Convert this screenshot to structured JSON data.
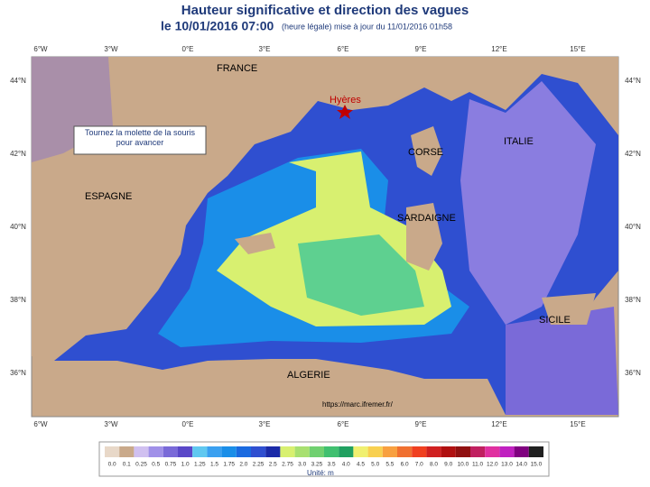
{
  "header": {
    "title": "Hauteur significative et direction des vagues",
    "date": "le 10/01/2016 07:00",
    "note": "(heure légale) mise à jour du 11/01/2016 01h58"
  },
  "map": {
    "longitudes": [
      "6°W",
      "3°W",
      "0°E",
      "3°E",
      "6°E",
      "9°E",
      "12°E",
      "15°E"
    ],
    "latitudes": [
      "44°N",
      "42°N",
      "40°N",
      "38°N",
      "36°N"
    ],
    "places": {
      "france": "FRANCE",
      "hyeres": "Hyères",
      "corse": "CORSE",
      "italie": "ITALIE",
      "espagne": "ESPAGNE",
      "sardaigne": "SARDAIGNE",
      "sicile": "SICILE",
      "algerie": "ALGERIE"
    },
    "hint": "Tournez la molette de la souris pour avancer",
    "source": "https://marc.ifremer.fr/"
  },
  "legend": {
    "labels": [
      "0.0",
      "0.1",
      "0.25",
      "0.5",
      "0.75",
      "1.0",
      "1.25",
      "1.5",
      "1.75",
      "2.0",
      "2.25",
      "2.5",
      "2.75",
      "3.0",
      "3.25",
      "3.5",
      "4.0",
      "4.5",
      "5.0",
      "5.5",
      "6.0",
      "7.0",
      "8.0",
      "9.0",
      "10.0",
      "11.0",
      "12.0",
      "13.0",
      "14.0",
      "15.0"
    ],
    "unit": "Unité: m"
  }
}
